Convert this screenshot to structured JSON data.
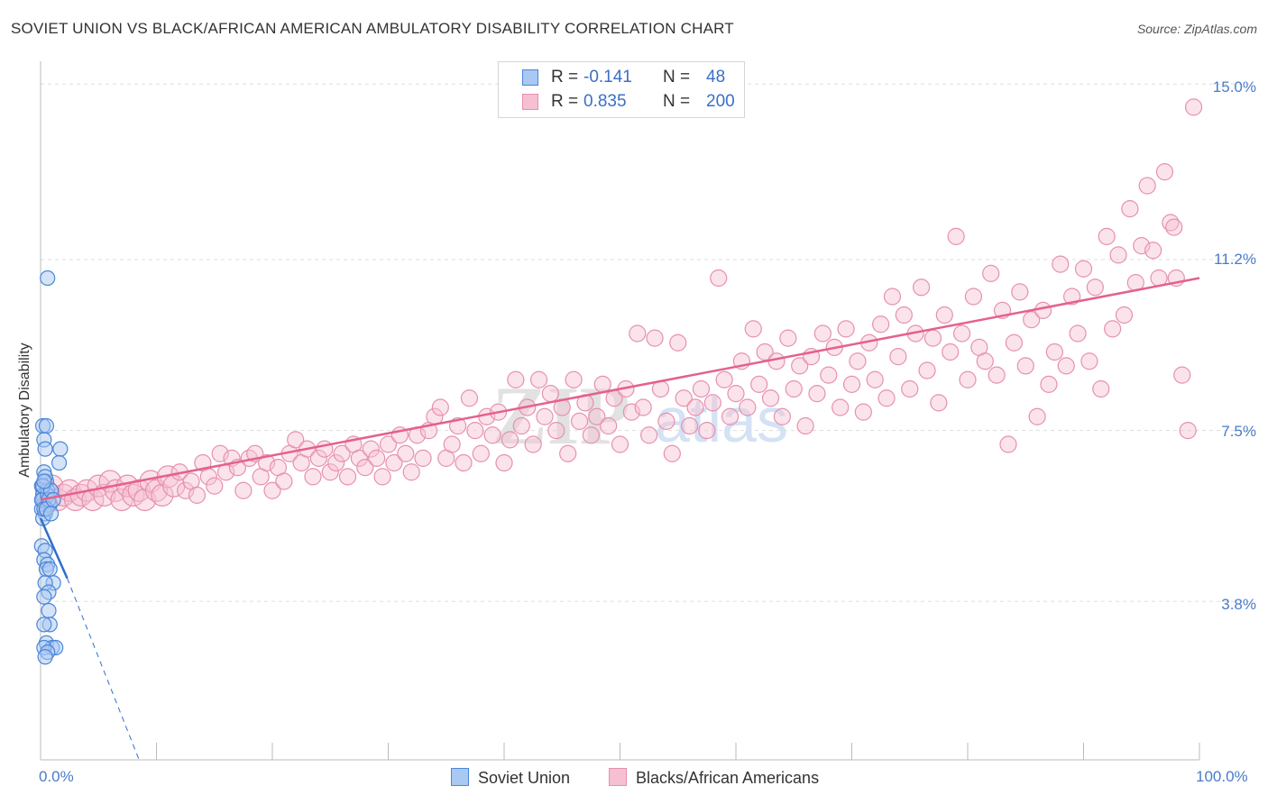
{
  "title": "SOVIET UNION VS BLACK/AFRICAN AMERICAN AMBULATORY DISABILITY CORRELATION CHART",
  "source": "Source: ZipAtlas.com",
  "watermark": {
    "zip": "ZIP",
    "atlas": "atlas"
  },
  "colors": {
    "soviet_fill": "#a9c8f2",
    "soviet_stroke": "#4a86d8",
    "soviet_line": "#2f6fca",
    "black_fill": "#f6c0d2",
    "black_stroke": "#e690ad",
    "black_line": "#e4618d",
    "tick_label": "#4a7cc9",
    "grid": "#dddddd"
  },
  "legend_top": [
    {
      "r_label": "R =",
      "r_value": "-0.141",
      "n_label": "N =",
      "n_value": "48"
    },
    {
      "r_label": "R =",
      "r_value": "0.835",
      "n_label": "N =",
      "n_value": "200"
    }
  ],
  "legend_bottom": [
    "Soviet Union",
    "Blacks/African Americans"
  ],
  "chart_data": {
    "type": "scatter",
    "title": "SOVIET UNION VS BLACK/AFRICAN AMERICAN AMBULATORY DISABILITY CORRELATION CHART",
    "xlabel": "",
    "ylabel": "Ambulatory Disability",
    "x_tick_labels": [
      "0.0%",
      "100.0%"
    ],
    "y_tick_labels": [
      "3.8%",
      "7.5%",
      "11.2%",
      "15.0%"
    ],
    "y_ticks": [
      3.8,
      7.5,
      11.2,
      15.0
    ],
    "xlim": [
      0,
      100
    ],
    "ylim": [
      0,
      15.5
    ],
    "grid": true,
    "legend_position": "top-center",
    "series": [
      {
        "name": "Soviet Union",
        "r": -0.141,
        "n": 48,
        "trend": {
          "x": [
            0,
            2.3
          ],
          "y": [
            5.6,
            4.3
          ],
          "dashed_extension_to": [
            8.5,
            0
          ]
        },
        "points": [
          [
            0.1,
            6.3
          ],
          [
            0.2,
            6.1
          ],
          [
            0.3,
            5.9
          ],
          [
            0.1,
            5.8
          ],
          [
            0.4,
            5.7
          ],
          [
            0.2,
            6.0
          ],
          [
            0.5,
            6.4
          ],
          [
            0.3,
            6.6
          ],
          [
            0.6,
            6.2
          ],
          [
            0.2,
            5.6
          ],
          [
            0.8,
            5.9
          ],
          [
            0.4,
            6.5
          ],
          [
            0.1,
            6.0
          ],
          [
            0.3,
            5.8
          ],
          [
            0.6,
            6.1
          ],
          [
            0.2,
            6.3
          ],
          [
            0.7,
            6.0
          ],
          [
            0.9,
            6.2
          ],
          [
            0.5,
            5.8
          ],
          [
            0.3,
            6.4
          ],
          [
            1.1,
            6.0
          ],
          [
            0.2,
            7.6
          ],
          [
            0.5,
            7.6
          ],
          [
            0.3,
            7.3
          ],
          [
            0.4,
            7.1
          ],
          [
            1.7,
            7.1
          ],
          [
            1.6,
            6.8
          ],
          [
            0.6,
            10.8
          ],
          [
            0.1,
            5.0
          ],
          [
            0.4,
            4.9
          ],
          [
            0.3,
            4.7
          ],
          [
            0.6,
            4.6
          ],
          [
            0.5,
            4.5
          ],
          [
            0.8,
            4.5
          ],
          [
            1.1,
            4.2
          ],
          [
            0.4,
            4.2
          ],
          [
            0.7,
            4.0
          ],
          [
            0.3,
            3.9
          ],
          [
            0.7,
            3.6
          ],
          [
            0.8,
            3.3
          ],
          [
            0.3,
            3.3
          ],
          [
            0.5,
            2.9
          ],
          [
            1.0,
            2.8
          ],
          [
            1.3,
            2.8
          ],
          [
            0.3,
            2.8
          ],
          [
            0.6,
            2.7
          ],
          [
            0.4,
            2.6
          ],
          [
            0.9,
            5.7
          ]
        ]
      },
      {
        "name": "Blacks/African Americans",
        "r": 0.835,
        "n": 200,
        "trend": {
          "x": [
            0,
            100
          ],
          "y": [
            6.0,
            10.8
          ]
        },
        "points": [
          [
            0.5,
            6.2
          ],
          [
            1.0,
            6.3
          ],
          [
            1.5,
            6.0
          ],
          [
            2.0,
            6.1
          ],
          [
            2.5,
            6.2
          ],
          [
            3.0,
            6.0
          ],
          [
            3.5,
            6.1
          ],
          [
            4.0,
            6.2
          ],
          [
            4.5,
            6.0
          ],
          [
            5.0,
            6.3
          ],
          [
            5.5,
            6.1
          ],
          [
            6.0,
            6.4
          ],
          [
            6.5,
            6.2
          ],
          [
            7.0,
            6.0
          ],
          [
            7.5,
            6.3
          ],
          [
            8.0,
            6.1
          ],
          [
            8.5,
            6.2
          ],
          [
            9.0,
            6.0
          ],
          [
            9.5,
            6.4
          ],
          [
            10.0,
            6.2
          ],
          [
            10.5,
            6.1
          ],
          [
            11.0,
            6.5
          ],
          [
            11.5,
            6.3
          ],
          [
            12.0,
            6.6
          ],
          [
            12.5,
            6.2
          ],
          [
            13.0,
            6.4
          ],
          [
            13.5,
            6.1
          ],
          [
            14.0,
            6.8
          ],
          [
            14.5,
            6.5
          ],
          [
            15.0,
            6.3
          ],
          [
            15.5,
            7.0
          ],
          [
            16.0,
            6.6
          ],
          [
            16.5,
            6.9
          ],
          [
            17.0,
            6.7
          ],
          [
            17.5,
            6.2
          ],
          [
            18.0,
            6.9
          ],
          [
            18.5,
            7.0
          ],
          [
            19.0,
            6.5
          ],
          [
            19.5,
            6.8
          ],
          [
            20.0,
            6.2
          ],
          [
            20.5,
            6.7
          ],
          [
            21.0,
            6.4
          ],
          [
            21.5,
            7.0
          ],
          [
            22.0,
            7.3
          ],
          [
            22.5,
            6.8
          ],
          [
            23.0,
            7.1
          ],
          [
            23.5,
            6.5
          ],
          [
            24.0,
            6.9
          ],
          [
            24.5,
            7.1
          ],
          [
            25.0,
            6.6
          ],
          [
            25.5,
            6.8
          ],
          [
            26.0,
            7.0
          ],
          [
            26.5,
            6.5
          ],
          [
            27.0,
            7.2
          ],
          [
            27.5,
            6.9
          ],
          [
            28.0,
            6.7
          ],
          [
            28.5,
            7.1
          ],
          [
            29.0,
            6.9
          ],
          [
            29.5,
            6.5
          ],
          [
            30.0,
            7.2
          ],
          [
            30.5,
            6.8
          ],
          [
            31.0,
            7.4
          ],
          [
            31.5,
            7.0
          ],
          [
            32.0,
            6.6
          ],
          [
            32.5,
            7.4
          ],
          [
            33.0,
            6.9
          ],
          [
            33.5,
            7.5
          ],
          [
            34.0,
            7.8
          ],
          [
            34.5,
            8.0
          ],
          [
            35.0,
            6.9
          ],
          [
            35.5,
            7.2
          ],
          [
            36.0,
            7.6
          ],
          [
            36.5,
            6.8
          ],
          [
            37.0,
            8.2
          ],
          [
            37.5,
            7.5
          ],
          [
            38.0,
            7.0
          ],
          [
            38.5,
            7.8
          ],
          [
            39.0,
            7.4
          ],
          [
            39.5,
            7.9
          ],
          [
            40.0,
            6.8
          ],
          [
            40.5,
            7.3
          ],
          [
            41.0,
            8.6
          ],
          [
            41.5,
            7.6
          ],
          [
            42.0,
            8.0
          ],
          [
            42.5,
            7.2
          ],
          [
            43.0,
            8.6
          ],
          [
            43.5,
            7.8
          ],
          [
            44.0,
            8.3
          ],
          [
            44.5,
            7.5
          ],
          [
            45.0,
            8.0
          ],
          [
            45.5,
            7.0
          ],
          [
            46.0,
            8.6
          ],
          [
            46.5,
            7.7
          ],
          [
            47.0,
            8.1
          ],
          [
            47.5,
            7.4
          ],
          [
            48.0,
            7.8
          ],
          [
            48.5,
            8.5
          ],
          [
            49.0,
            7.6
          ],
          [
            49.5,
            8.2
          ],
          [
            50.0,
            7.2
          ],
          [
            50.5,
            8.4
          ],
          [
            51.0,
            7.9
          ],
          [
            51.5,
            9.6
          ],
          [
            52.0,
            8.0
          ],
          [
            52.5,
            7.4
          ],
          [
            53.0,
            9.5
          ],
          [
            53.5,
            8.4
          ],
          [
            54.0,
            7.7
          ],
          [
            54.5,
            7.0
          ],
          [
            55.0,
            9.4
          ],
          [
            55.5,
            8.2
          ],
          [
            56.0,
            7.6
          ],
          [
            56.5,
            8.0
          ],
          [
            57.0,
            8.4
          ],
          [
            57.5,
            7.5
          ],
          [
            58.0,
            8.1
          ],
          [
            58.5,
            10.8
          ],
          [
            59.0,
            8.6
          ],
          [
            59.5,
            7.8
          ],
          [
            60.0,
            8.3
          ],
          [
            60.5,
            9.0
          ],
          [
            61.0,
            8.0
          ],
          [
            61.5,
            9.7
          ],
          [
            62.0,
            8.5
          ],
          [
            62.5,
            9.2
          ],
          [
            63.0,
            8.2
          ],
          [
            63.5,
            9.0
          ],
          [
            64.0,
            7.8
          ],
          [
            64.5,
            9.5
          ],
          [
            65.0,
            8.4
          ],
          [
            65.5,
            8.9
          ],
          [
            66.0,
            7.6
          ],
          [
            66.5,
            9.1
          ],
          [
            67.0,
            8.3
          ],
          [
            67.5,
            9.6
          ],
          [
            68.0,
            8.7
          ],
          [
            68.5,
            9.3
          ],
          [
            69.0,
            8.0
          ],
          [
            69.5,
            9.7
          ],
          [
            70.0,
            8.5
          ],
          [
            70.5,
            9.0
          ],
          [
            71.0,
            7.9
          ],
          [
            71.5,
            9.4
          ],
          [
            72.0,
            8.6
          ],
          [
            72.5,
            9.8
          ],
          [
            73.0,
            8.2
          ],
          [
            73.5,
            10.4
          ],
          [
            74.0,
            9.1
          ],
          [
            74.5,
            10.0
          ],
          [
            75.0,
            8.4
          ],
          [
            75.5,
            9.6
          ],
          [
            76.0,
            10.6
          ],
          [
            76.5,
            8.8
          ],
          [
            77.0,
            9.5
          ],
          [
            77.5,
            8.1
          ],
          [
            78.0,
            10.0
          ],
          [
            78.5,
            9.2
          ],
          [
            79.0,
            11.7
          ],
          [
            79.5,
            9.6
          ],
          [
            80.0,
            8.6
          ],
          [
            80.5,
            10.4
          ],
          [
            81.0,
            9.3
          ],
          [
            81.5,
            9.0
          ],
          [
            82.0,
            10.9
          ],
          [
            82.5,
            8.7
          ],
          [
            83.0,
            10.1
          ],
          [
            83.5,
            7.2
          ],
          [
            84.0,
            9.4
          ],
          [
            84.5,
            10.5
          ],
          [
            85.0,
            8.9
          ],
          [
            85.5,
            9.9
          ],
          [
            86.0,
            7.8
          ],
          [
            86.5,
            10.1
          ],
          [
            87.0,
            8.5
          ],
          [
            87.5,
            9.2
          ],
          [
            88.0,
            11.1
          ],
          [
            88.5,
            8.9
          ],
          [
            89.0,
            10.4
          ],
          [
            89.5,
            9.6
          ],
          [
            90.0,
            11.0
          ],
          [
            90.5,
            9.0
          ],
          [
            91.0,
            10.6
          ],
          [
            91.5,
            8.4
          ],
          [
            92.0,
            11.7
          ],
          [
            92.5,
            9.7
          ],
          [
            93.0,
            11.3
          ],
          [
            93.5,
            10.0
          ],
          [
            94.0,
            12.3
          ],
          [
            94.5,
            10.7
          ],
          [
            95.0,
            11.5
          ],
          [
            95.5,
            12.8
          ],
          [
            96.0,
            11.4
          ],
          [
            96.5,
            10.8
          ],
          [
            97.0,
            13.1
          ],
          [
            97.5,
            12.0
          ],
          [
            98.0,
            10.8
          ],
          [
            98.5,
            8.7
          ],
          [
            99.0,
            7.5
          ],
          [
            99.5,
            14.5
          ],
          [
            97.8,
            11.9
          ]
        ]
      }
    ]
  }
}
